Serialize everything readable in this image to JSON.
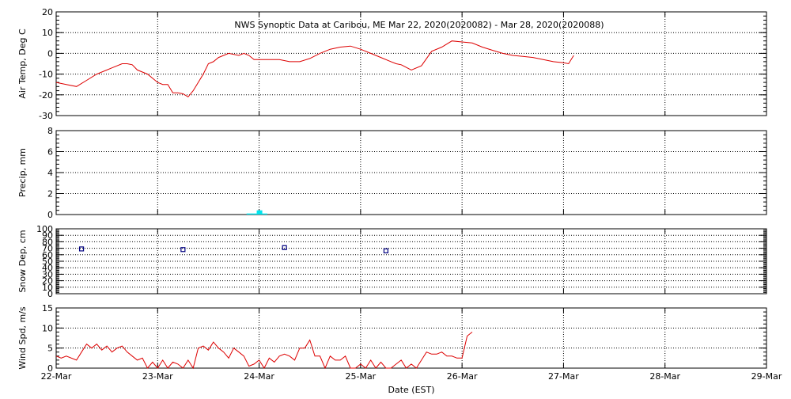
{
  "title": "NWS Synoptic Data at Caribou, ME   Mar 22, 2020(2020082) - Mar 28, 2020(2020088)",
  "xlabel": "Date (EST)",
  "colors": {
    "temp": "#dd0000",
    "precip": "#00e5ee",
    "snow": "#000080",
    "wind": "#dd0000",
    "axis": "#000000"
  },
  "chart_data": [
    {
      "type": "line",
      "ylabel": "Air Temp, Deg C",
      "ylim": [
        -30,
        20
      ],
      "yticks": [
        -30,
        -20,
        -10,
        0,
        10,
        20
      ],
      "xlim": [
        0,
        7
      ],
      "grid": true,
      "series": [
        {
          "x": [
            0,
            0.1,
            0.2,
            0.3,
            0.4,
            0.5,
            0.55,
            0.65,
            0.7,
            0.75,
            0.8,
            0.85,
            0.9,
            1.0,
            1.05,
            1.1,
            1.15,
            1.2,
            1.25,
            1.3,
            1.35,
            1.4,
            1.45,
            1.5,
            1.55,
            1.6,
            1.65,
            1.7,
            1.8,
            1.85,
            1.9,
            1.95,
            2.0,
            2.1,
            2.2,
            2.3,
            2.4,
            2.5,
            2.6,
            2.7,
            2.8,
            2.9,
            3.0,
            3.1,
            3.2,
            3.3,
            3.35,
            3.4,
            3.5,
            3.6,
            3.7,
            3.8,
            3.9,
            4.0,
            4.1,
            4.2,
            4.3,
            4.4,
            4.5,
            4.6,
            4.7,
            4.8,
            4.9,
            5.0,
            5.05,
            5.1
          ],
          "y": [
            -14,
            -15,
            -16,
            -13,
            -10,
            -8,
            -7,
            -5,
            -5,
            -5.5,
            -8,
            -9,
            -10,
            -14,
            -15,
            -15,
            -19,
            -19,
            -19.5,
            -21,
            -18,
            -14,
            -10,
            -5,
            -4,
            -2,
            -1,
            0,
            -1,
            0,
            -1,
            -3,
            -3,
            -3,
            -3,
            -4,
            -4,
            -2.5,
            0,
            2,
            3,
            3.5,
            2,
            0,
            -2,
            -4,
            -5,
            -5.5,
            -8,
            -6,
            1,
            3,
            6,
            5.5,
            5,
            3,
            1.5,
            0,
            -1,
            -1.5,
            -2,
            -3,
            -4,
            -4.5,
            -5,
            -1
          ]
        }
      ]
    },
    {
      "type": "bar",
      "ylabel": "Precip, mm",
      "ylim": [
        0,
        8
      ],
      "yticks": [
        0,
        2,
        4,
        6,
        8
      ],
      "xlim": [
        0,
        7
      ],
      "grid": true,
      "series": [
        {
          "x": [
            1.9,
            1.95,
            2.0,
            2.05
          ],
          "values": [
            0.1,
            0.1,
            0.4,
            0.1
          ]
        }
      ]
    },
    {
      "type": "scatter",
      "ylabel": "Snow Dep, cm",
      "ylim": [
        0,
        100
      ],
      "yticks": [
        0,
        10,
        20,
        30,
        40,
        50,
        60,
        70,
        80,
        90,
        100
      ],
      "xlim": [
        0,
        7
      ],
      "grid": true,
      "series": [
        {
          "x": [
            0.25,
            1.25,
            2.25,
            3.25
          ],
          "y": [
            69,
            68,
            71,
            66
          ]
        }
      ]
    },
    {
      "type": "line",
      "ylabel": "Wind Spd, m/s",
      "ylim": [
        0,
        15
      ],
      "yticks": [
        0,
        5,
        10,
        15
      ],
      "xlim": [
        0,
        7
      ],
      "grid": true,
      "xticks": [
        "22-Mar",
        "23-Mar",
        "24-Mar",
        "25-Mar",
        "26-Mar",
        "27-Mar",
        "28-Mar",
        "29-Mar"
      ],
      "series": [
        {
          "x": [
            0,
            0.05,
            0.1,
            0.2,
            0.25,
            0.3,
            0.35,
            0.4,
            0.45,
            0.5,
            0.55,
            0.6,
            0.65,
            0.7,
            0.75,
            0.8,
            0.85,
            0.9,
            0.95,
            1.0,
            1.05,
            1.1,
            1.15,
            1.2,
            1.25,
            1.3,
            1.35,
            1.4,
            1.45,
            1.5,
            1.55,
            1.6,
            1.65,
            1.7,
            1.75,
            1.8,
            1.85,
            1.9,
            1.95,
            2.0,
            2.05,
            2.1,
            2.15,
            2.2,
            2.25,
            2.3,
            2.35,
            2.4,
            2.45,
            2.5,
            2.55,
            2.6,
            2.65,
            2.7,
            2.75,
            2.8,
            2.85,
            2.9,
            2.95,
            3.0,
            3.05,
            3.1,
            3.15,
            3.2,
            3.25,
            3.3,
            3.35,
            3.4,
            3.45,
            3.5,
            3.55,
            3.6,
            3.65,
            3.7,
            3.75,
            3.8,
            3.85,
            3.9,
            3.95,
            4.0,
            4.05,
            4.1
          ],
          "y": [
            3,
            2.5,
            3,
            2,
            4,
            6,
            5,
            6,
            4.5,
            5.5,
            4,
            5,
            5.5,
            4,
            3,
            2,
            2.5,
            0,
            1.5,
            0,
            2,
            0,
            1.5,
            1,
            0,
            2,
            0,
            5,
            5.5,
            4.5,
            6.5,
            5,
            4,
            2.5,
            5,
            4,
            3,
            0.5,
            1,
            2,
            0,
            2.5,
            1.5,
            3,
            3.5,
            3,
            2,
            5,
            5,
            7,
            3,
            3,
            0,
            3,
            2,
            2,
            3,
            0,
            0,
            1,
            0,
            2,
            0,
            1.5,
            0,
            0,
            1,
            2,
            0,
            1,
            0,
            2,
            4,
            3.5,
            3.5,
            4,
            3,
            3,
            2.5,
            2.5,
            8,
            9
          ]
        }
      ]
    }
  ]
}
